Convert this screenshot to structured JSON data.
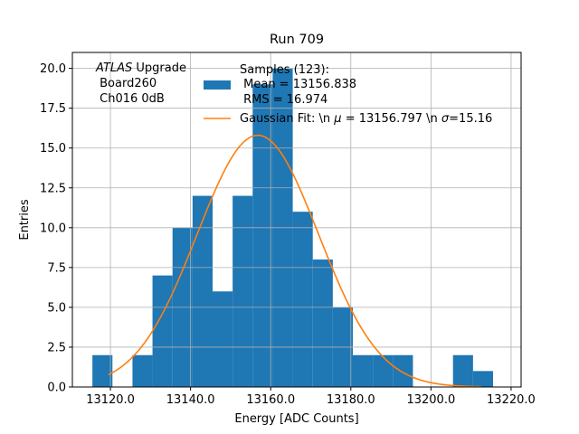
{
  "chart_data": {
    "type": "histogram",
    "title": "Run 709",
    "xlabel": "Energy [ADC Counts]",
    "ylabel": "Entries",
    "xlim": [
      13110.5,
      13222.5
    ],
    "ylim": [
      0,
      21
    ],
    "grid": true,
    "xticks": [
      13120.0,
      13140.0,
      13160.0,
      13180.0,
      13200.0,
      13220.0
    ],
    "xtick_labels": [
      "13120.0",
      "13140.0",
      "13160.0",
      "13180.0",
      "13200.0",
      "13220.0"
    ],
    "yticks": [
      0,
      2.5,
      5,
      7.5,
      10,
      12.5,
      15,
      17.5,
      20
    ],
    "ytick_labels": [
      "0.0",
      "2.5",
      "5.0",
      "7.5",
      "10.0",
      "12.5",
      "15.0",
      "17.5",
      "20.0"
    ],
    "bins": [
      {
        "x0": 13115.5,
        "x1": 13120.5,
        "count": 2
      },
      {
        "x0": 13120.5,
        "x1": 13125.5,
        "count": 0
      },
      {
        "x0": 13125.5,
        "x1": 13130.5,
        "count": 2
      },
      {
        "x0": 13130.5,
        "x1": 13135.5,
        "count": 7
      },
      {
        "x0": 13135.5,
        "x1": 13140.5,
        "count": 10
      },
      {
        "x0": 13140.5,
        "x1": 13145.5,
        "count": 12
      },
      {
        "x0": 13145.5,
        "x1": 13150.5,
        "count": 6
      },
      {
        "x0": 13150.5,
        "x1": 13155.5,
        "count": 12
      },
      {
        "x0": 13155.5,
        "x1": 13160.5,
        "count": 19
      },
      {
        "x0": 13160.5,
        "x1": 13165.5,
        "count": 20
      },
      {
        "x0": 13165.5,
        "x1": 13170.5,
        "count": 11
      },
      {
        "x0": 13170.5,
        "x1": 13175.5,
        "count": 8
      },
      {
        "x0": 13175.5,
        "x1": 13180.5,
        "count": 5
      },
      {
        "x0": 13180.5,
        "x1": 13185.5,
        "count": 2
      },
      {
        "x0": 13185.5,
        "x1": 13190.5,
        "count": 2
      },
      {
        "x0": 13190.5,
        "x1": 13195.5,
        "count": 2
      },
      {
        "x0": 13195.5,
        "x1": 13200.5,
        "count": 0
      },
      {
        "x0": 13200.5,
        "x1": 13205.5,
        "count": 0
      },
      {
        "x0": 13205.5,
        "x1": 13210.5,
        "count": 2
      },
      {
        "x0": 13210.5,
        "x1": 13215.5,
        "count": 1
      }
    ],
    "fit": {
      "amplitude": 15.8,
      "mu": 13156.797,
      "sigma": 15.16,
      "x_range": [
        13119.5,
        13212.5
      ]
    },
    "colors": {
      "histogram": "#1f77b4",
      "fit": "#ff7f0e",
      "grid": "#b0b0b0"
    },
    "legend": {
      "placement": "upper-center",
      "histogram_lines": [
        "Samples (123):",
        " Mean = 13156.838",
        " RMS = 16.974"
      ],
      "fit_label_prefix": "Gaussian Fit: \\n ",
      "fit_mu_symbol": "μ",
      "fit_mu_text": " = 13156.797 \\n ",
      "fit_sigma_symbol": "σ",
      "fit_sigma_text": "=15.16"
    },
    "annotation": {
      "placement": "upper-left",
      "italic": "ATLAS",
      "rest": " Upgrade",
      "lines": [
        " Board260",
        " Ch016 0dB"
      ]
    }
  }
}
